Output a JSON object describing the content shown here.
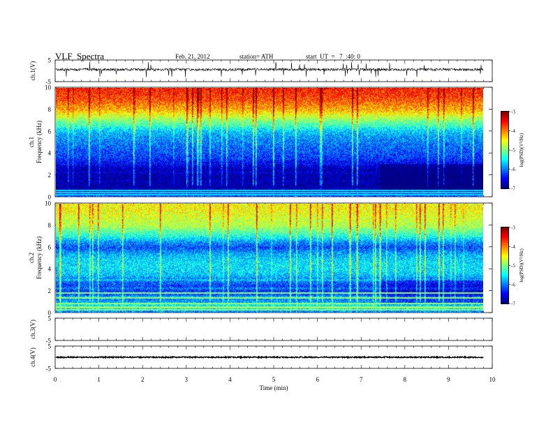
{
  "header": {
    "title": "VLF  Spectra",
    "date": "Feb. 21, 2012",
    "station": "station= ATH",
    "start": "start  UT  =   7  :40: 0"
  },
  "chart_data": [
    {
      "type": "line",
      "panel": "ch1-waveform",
      "ylabel": "ch.1(V)",
      "yticks": [
        "5",
        "-5"
      ],
      "ylim": [
        -5,
        5
      ],
      "xlim": [
        0,
        10
      ],
      "data_end_min": 9.8,
      "baseline": 0.6,
      "noise_amplitude": 0.6,
      "spike_amplitude": 3.5
    },
    {
      "type": "heatmap",
      "panel": "ch1-spectrogram",
      "ylabel_line1": "ch.1",
      "ylabel_line2": "Frequency  (kHz)",
      "yticks": [
        "10",
        "8",
        "6",
        "4",
        "2",
        "0"
      ],
      "ylim": [
        0,
        10
      ],
      "xlim": [
        0,
        10
      ],
      "data_end_min": 9.8,
      "colorbar": {
        "label": "log(PSD)(V²/Hz)",
        "ticks": [
          "-3",
          "-4",
          "-5",
          "-6",
          "-7"
        ],
        "range": [
          -7,
          -3
        ]
      },
      "profile_khz": [
        0,
        0.5,
        1,
        1.5,
        2,
        2.5,
        3,
        3.5,
        4,
        4.5,
        5,
        5.5,
        6,
        6.5,
        7,
        7.5,
        8,
        8.5,
        9,
        9.5,
        10
      ],
      "profile_logpsd": [
        -6.2,
        -6.9,
        -6.9,
        -6.9,
        -6.85,
        -6.8,
        -6.6,
        -6.3,
        -6.2,
        -6.1,
        -6.0,
        -5.9,
        -5.7,
        -5.3,
        -5.0,
        -4.6,
        -4.2,
        -4.0,
        -3.8,
        -3.7,
        -3.6
      ],
      "tone_lines_khz": [
        0.15,
        0.35,
        0.55
      ],
      "background_change_min": 7.4
    },
    {
      "type": "heatmap",
      "panel": "ch2-spectrogram",
      "ylabel_line1": "ch.2",
      "ylabel_line2": "Frequency  (kHz)",
      "yticks": [
        "10",
        "8",
        "6",
        "4",
        "2",
        "0"
      ],
      "ylim": [
        0,
        10
      ],
      "xlim": [
        0,
        10
      ],
      "data_end_min": 9.8,
      "colorbar": {
        "label": "log(PSD)(V²/Hz)",
        "ticks": [
          "-3",
          "-4",
          "-5",
          "-6",
          "-7"
        ],
        "range": [
          -7,
          -3
        ]
      },
      "profile_khz": [
        0,
        0.5,
        1,
        1.5,
        2,
        2.5,
        3,
        3.5,
        4,
        4.5,
        5,
        5.5,
        6,
        6.5,
        7,
        7.5,
        8,
        8.5,
        9,
        9.5,
        10
      ],
      "profile_logpsd": [
        -6.0,
        -5.6,
        -5.9,
        -6.1,
        -6.3,
        -6.2,
        -6.0,
        -5.7,
        -5.6,
        -5.6,
        -5.7,
        -5.9,
        -6.2,
        -5.9,
        -5.4,
        -5.1,
        -4.8,
        -4.7,
        -4.6,
        -4.5,
        -4.5
      ],
      "tone_lines_khz": [
        0.2,
        0.45,
        0.8,
        1.3,
        1.8
      ],
      "background_change_min": 7.4
    },
    {
      "type": "line",
      "panel": "ch3-waveform",
      "ylabel": "ch.3(V)",
      "yticks": [
        "5",
        "-5"
      ],
      "ylim": [
        -5,
        5
      ],
      "xlim": [
        0,
        10
      ],
      "empty": true
    },
    {
      "type": "line",
      "panel": "ch4-waveform",
      "ylabel": "ch.4(V)",
      "yticks": [
        "5",
        "-5"
      ],
      "ylim": [
        -5,
        5
      ],
      "xlim": [
        0,
        10
      ],
      "data_end_min": 9.8,
      "baseline": 0.0,
      "noise_amplitude": 0.25,
      "xticks": [
        "0",
        "1",
        "2",
        "3",
        "4",
        "5",
        "6",
        "7",
        "8",
        "9",
        "10"
      ],
      "xlabel": "Time  (min)"
    }
  ]
}
